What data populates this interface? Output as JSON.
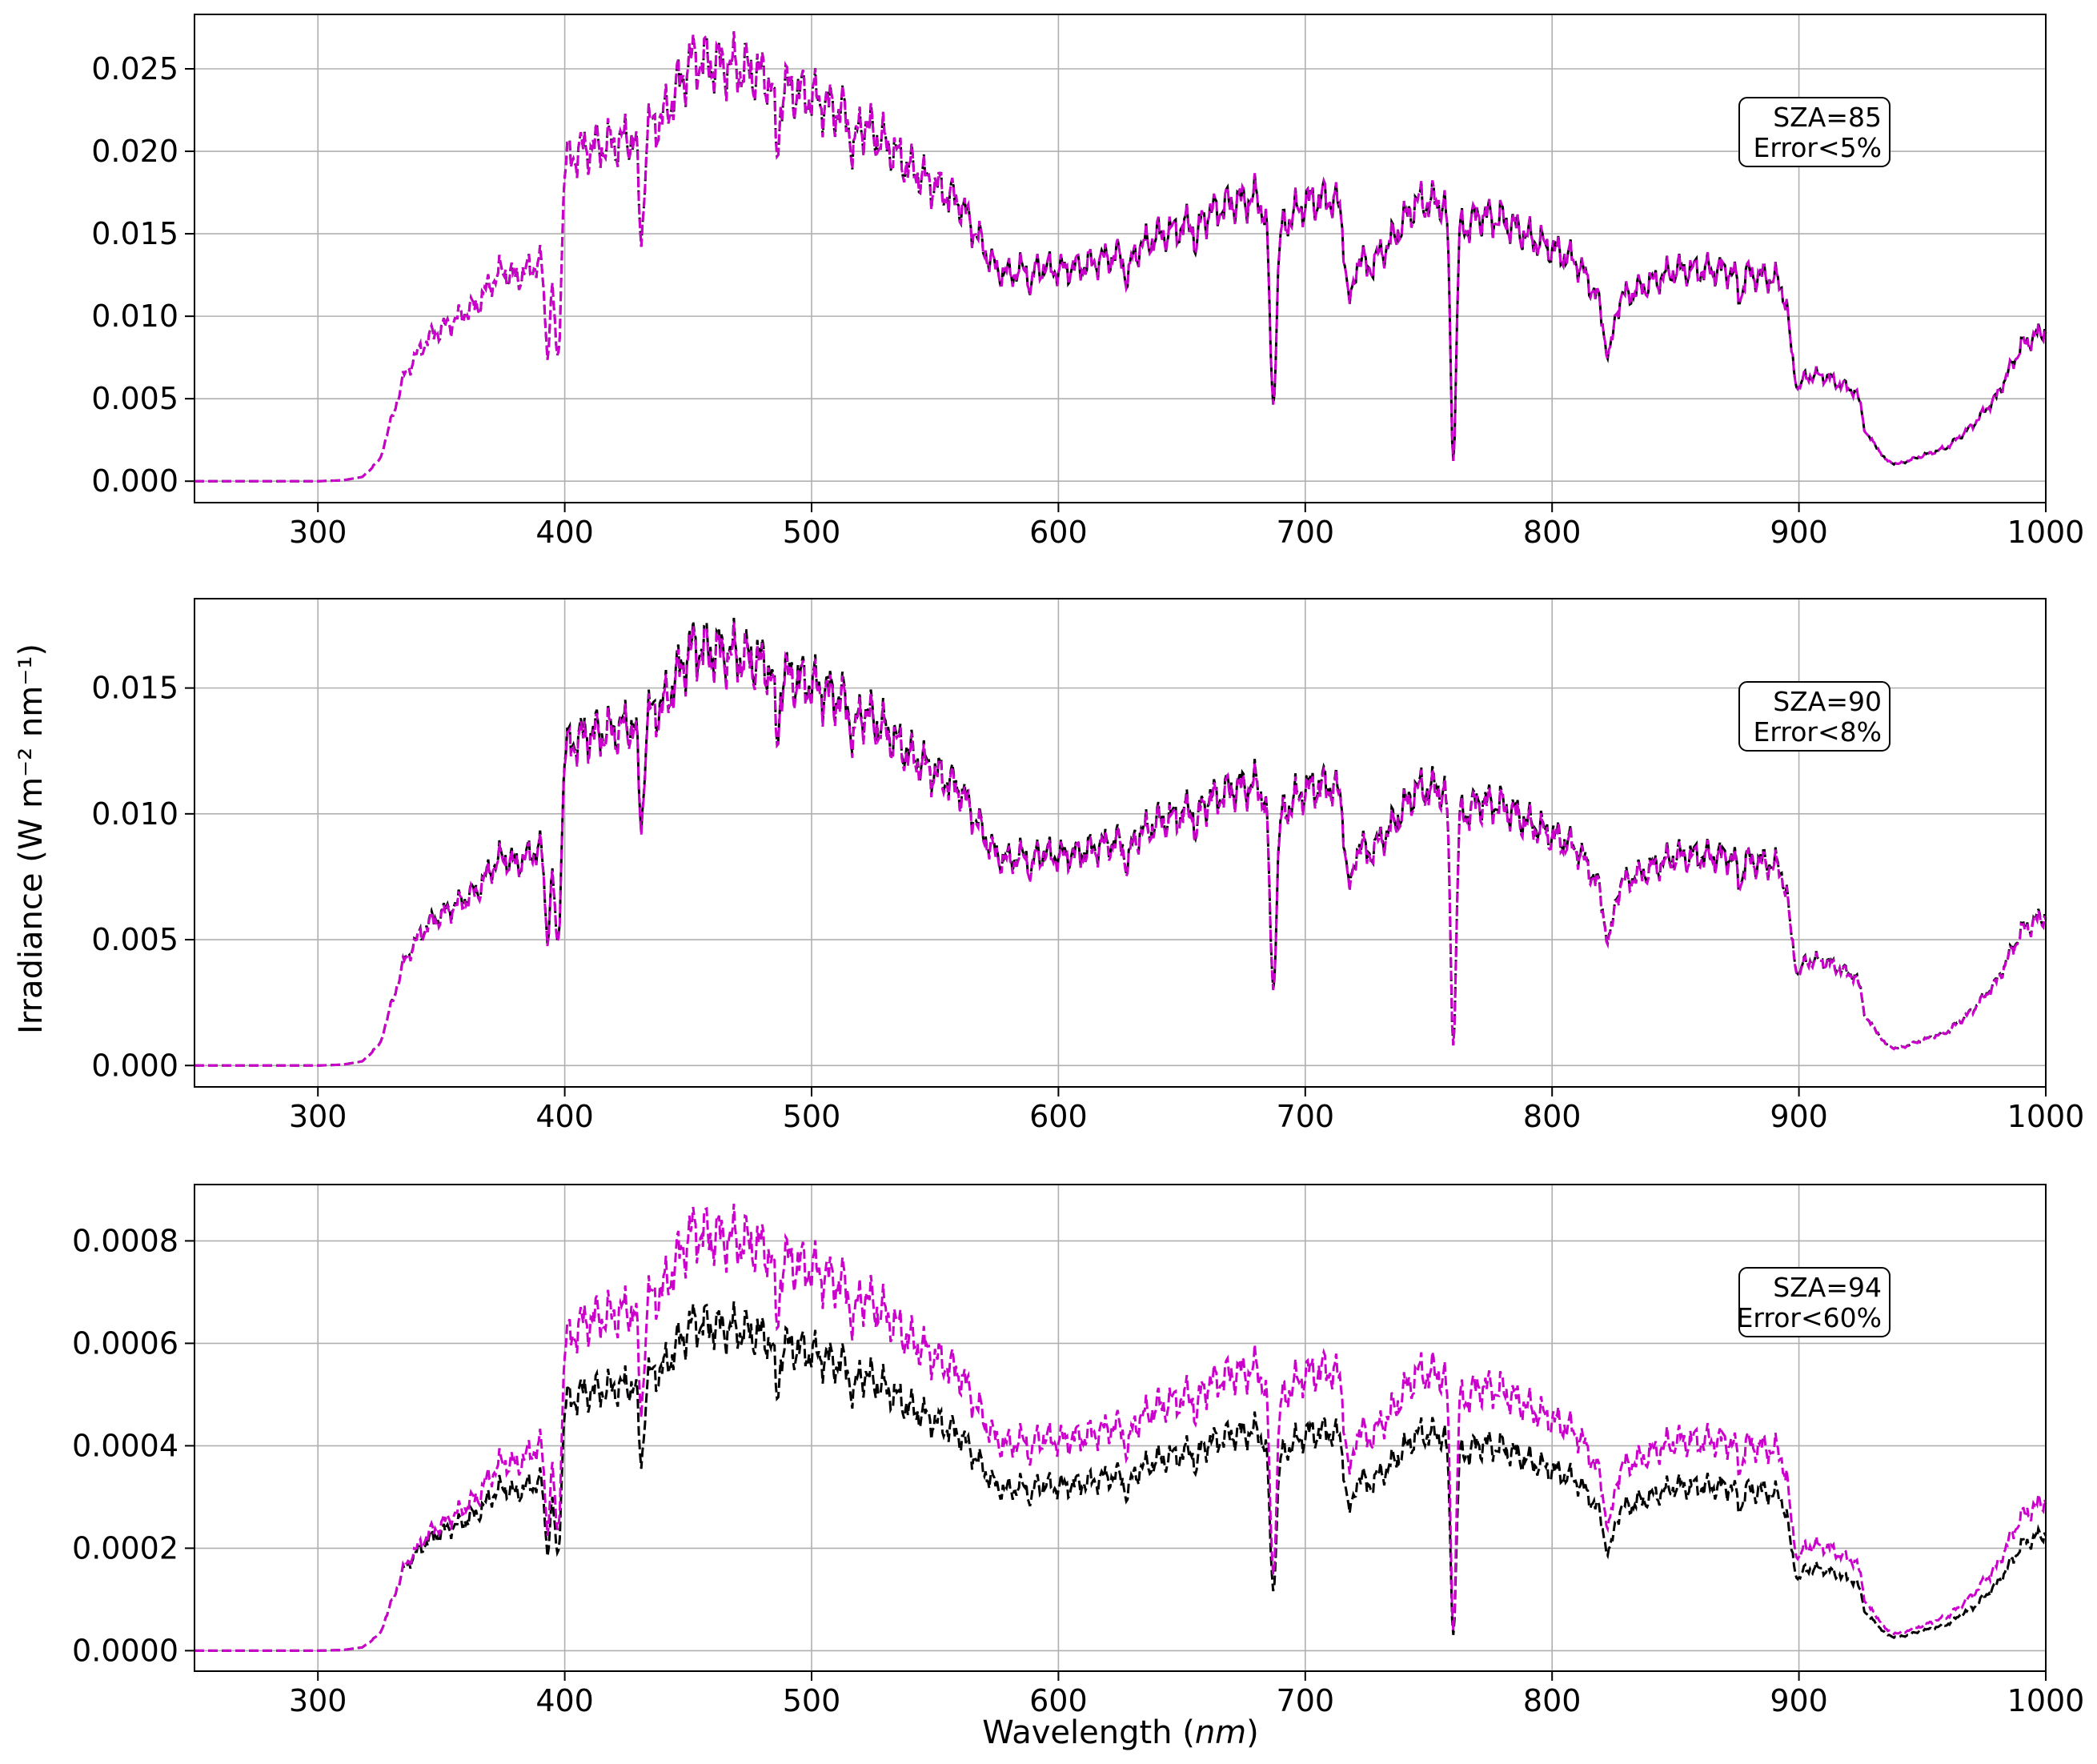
{
  "figure": {
    "ylabel": "Irradiance (W m⁻² nm⁻¹)",
    "xlabel_main": "Wavelength (",
    "xlabel_unit": "nm",
    "xlabel_close": ")"
  },
  "colors": {
    "reference": "#000000",
    "model": "#cc00cc",
    "grid": "#b0b0b0"
  },
  "chart_data": [
    {
      "type": "line",
      "xlim": [
        250,
        1000
      ],
      "ylim": [
        -0.0013,
        0.0283
      ],
      "xticks": [
        300,
        400,
        500,
        600,
        700,
        800,
        900,
        1000
      ],
      "yticks": [
        0,
        0.005,
        0.01,
        0.015,
        0.02,
        0.025
      ],
      "ytick_labels": [
        "0.000",
        "0.005",
        "0.010",
        "0.015",
        "0.020",
        "0.025"
      ],
      "grid": true,
      "annotation": [
        "SZA=85",
        "Error<5%"
      ],
      "scale": 0.0256,
      "model_ratio": 1.0
    },
    {
      "type": "line",
      "xlim": [
        250,
        1000
      ],
      "ylim": [
        -0.00085,
        0.01855
      ],
      "xticks": [
        300,
        400,
        500,
        600,
        700,
        800,
        900,
        1000
      ],
      "yticks": [
        0,
        0.005,
        0.01,
        0.015
      ],
      "ytick_labels": [
        "0.000",
        "0.005",
        "0.010",
        "0.015"
      ],
      "grid": true,
      "annotation": [
        "SZA=90",
        "Error<8%"
      ],
      "scale": 0.0167,
      "model_ratio": 0.99
    },
    {
      "type": "line",
      "xlim": [
        250,
        1000
      ],
      "ylim": [
        -4e-05,
        0.00091
      ],
      "xticks": [
        300,
        400,
        500,
        600,
        700,
        800,
        900,
        1000
      ],
      "yticks": [
        0,
        0.0002,
        0.0004,
        0.0006,
        0.0008
      ],
      "ytick_labels": [
        "0.0000",
        "0.0002",
        "0.0004",
        "0.0006",
        "0.0008"
      ],
      "grid": true,
      "annotation": [
        "SZA=94",
        "Error<60%"
      ],
      "scale": 0.00064,
      "model_ratio": 1.28
    }
  ]
}
